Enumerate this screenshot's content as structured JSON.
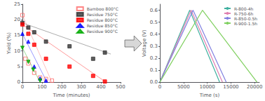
{
  "chart_data": [
    {
      "type": "scatter",
      "xlabel": "Time (minutes)",
      "ylabel": "Yield (%)",
      "xlim": [
        0,
        500
      ],
      "ylim": [
        0,
        25
      ],
      "xticks": [
        0,
        100,
        200,
        300,
        400,
        500
      ],
      "yticks": [
        0,
        5,
        10,
        15,
        20,
        25
      ],
      "grid": false,
      "legend": "upper right",
      "series": [
        {
          "name": "Bamboo 800°C",
          "color": "#ff6666",
          "marker": "open-square",
          "x": [
            0,
            15,
            30,
            60,
            90,
            120,
            150
          ],
          "values": [
            21.5,
            7.5,
            6.0,
            3.0,
            1.5,
            1.0,
            0.5
          ],
          "line_x": [
            0,
            150
          ],
          "line_y": [
            21.5,
            0.0
          ]
        },
        {
          "name": "Residue 750°C",
          "color": "#333333",
          "marker": "square",
          "x": [
            0,
            30,
            60,
            120,
            240,
            360,
            420
          ],
          "values": [
            19.0,
            17.5,
            16.0,
            13.0,
            11.5,
            7.5,
            9.5
          ],
          "line_x": [
            0,
            450
          ],
          "line_y": [
            19.0,
            9.0
          ]
        },
        {
          "name": "Residue 800°C",
          "color": "#ff0000",
          "marker": "square",
          "x": [
            0,
            30,
            60,
            120,
            240,
            360,
            420
          ],
          "values": [
            18.5,
            15.5,
            12.0,
            7.5,
            5.0,
            2.0,
            0.2
          ],
          "line_x": [
            0,
            425
          ],
          "line_y": [
            18.5,
            0.0
          ]
        },
        {
          "name": "Residue 850°C",
          "color": "#0000ff",
          "marker": "triangle",
          "x": [
            0,
            30,
            60,
            90,
            120
          ],
          "values": [
            15.5,
            13.0,
            5.0,
            1.2,
            0.5
          ],
          "line_x": [
            0,
            125
          ],
          "line_y": [
            15.5,
            0.0
          ]
        },
        {
          "name": "Residue 900°C",
          "color": "#00aa00",
          "marker": "triangle-down",
          "x": [
            0,
            30,
            55,
            90
          ],
          "values": [
            11.0,
            6.5,
            4.0,
            0.5
          ],
          "line_x": [
            0,
            90
          ],
          "line_y": [
            11.0,
            0.0
          ]
        }
      ]
    },
    {
      "type": "line",
      "xlabel": "Time (s)",
      "ylabel": "Voltage (V)",
      "xlim": [
        0,
        21000
      ],
      "ylim": [
        0.0,
        0.65
      ],
      "xticks": [
        0,
        5000,
        10000,
        15000,
        20000
      ],
      "yticks": [
        {
          "value": 0.0,
          "label": "0.0"
        },
        0.1,
        0.2,
        0.3,
        0.4,
        0.5,
        0.6
      ],
      "grid": false,
      "legend": "upper right",
      "series": [
        {
          "name": "R-800-4h",
          "color": "#40b0a0",
          "x": [
            0,
            6300,
            12600,
            12600
          ],
          "values": [
            0.0,
            0.6,
            0.0,
            0.0
          ]
        },
        {
          "name": "R-750-6h",
          "color": "#e080b0",
          "x": [
            0,
            6600,
            13200,
            13200
          ],
          "values": [
            0.0,
            0.6,
            0.0,
            0.0
          ]
        },
        {
          "name": "R-850-0.5h",
          "color": "#8080e0",
          "x": [
            0,
            7000,
            14000,
            14000
          ],
          "values": [
            0.0,
            0.6,
            0.0,
            0.0
          ]
        },
        {
          "name": "R-900-1.5h",
          "color": "#80d060",
          "x": [
            0,
            9000,
            20500,
            20500
          ],
          "values": [
            0.0,
            0.6,
            0.0,
            0.0
          ]
        }
      ]
    }
  ]
}
